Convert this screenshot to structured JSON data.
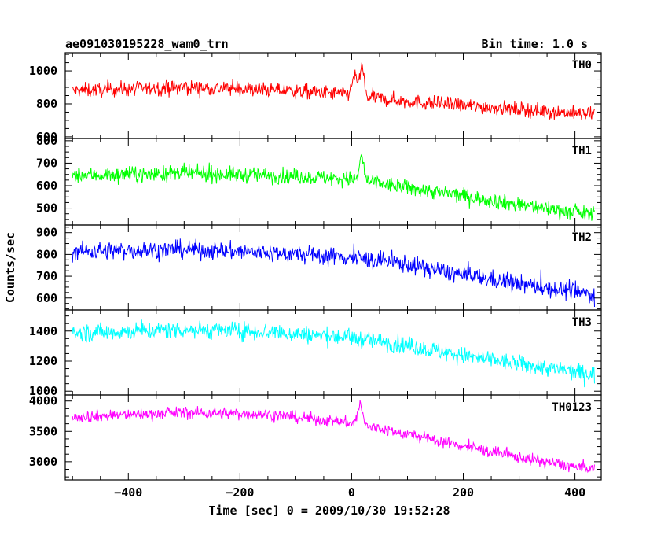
{
  "chart_data": {
    "type": "line",
    "title_left": "ae091030195228_wam0_trn",
    "title_right": "Bin time: 1.0 s",
    "xlabel": "Time [sec] 0 = 2009/10/30 19:52:28",
    "ylabel": "Counts/sec",
    "xlim": [
      -513,
      447
    ],
    "x_ticks": [
      -400,
      -200,
      0,
      200,
      400
    ],
    "x_range": [
      -500,
      435
    ],
    "panels": [
      {
        "name": "TH0",
        "color": "#ff0000",
        "ylim": [
          590,
          1110
        ],
        "y_ticks": [
          600,
          800,
          1000
        ],
        "tick_labels": [
          "600",
          "800",
          "1000"
        ],
        "trend": [
          [
            -500,
            880
          ],
          [
            -300,
            900
          ],
          [
            -150,
            885
          ],
          [
            -10,
            860
          ],
          [
            80,
            820
          ],
          [
            200,
            790
          ],
          [
            435,
            735
          ]
        ],
        "noise": 32,
        "spike_max": 60,
        "burst": [
          {
            "x": 5,
            "width": 6,
            "amp": 120
          },
          {
            "x": 18,
            "width": 5,
            "amp": 180
          }
        ]
      },
      {
        "name": "TH1",
        "color": "#00ff00",
        "ylim": [
          425,
          810
        ],
        "y_ticks": [
          500,
          600,
          700,
          800
        ],
        "tick_labels": [
          "500",
          "600",
          "700",
          "800"
        ],
        "trend": [
          [
            -500,
            645
          ],
          [
            -300,
            655
          ],
          [
            -150,
            645
          ],
          [
            0,
            630
          ],
          [
            100,
            590
          ],
          [
            200,
            555
          ],
          [
            300,
            515
          ],
          [
            435,
            470
          ]
        ],
        "noise": 25,
        "spike_max": 55,
        "burst": [
          {
            "x": 18,
            "width": 5,
            "amp": 110
          }
        ]
      },
      {
        "name": "TH2",
        "color": "#0000ff",
        "ylim": [
          545,
          935
        ],
        "y_ticks": [
          600,
          700,
          800,
          900
        ],
        "tick_labels": [
          "600",
          "700",
          "800",
          "900"
        ],
        "trend": [
          [
            -500,
            815
          ],
          [
            -300,
            822
          ],
          [
            -150,
            808
          ],
          [
            0,
            785
          ],
          [
            100,
            755
          ],
          [
            200,
            705
          ],
          [
            300,
            665
          ],
          [
            435,
            615
          ]
        ],
        "noise": 30,
        "spike_max": 70,
        "burst": []
      },
      {
        "name": "TH3",
        "color": "#00ffff",
        "ylim": [
          975,
          1540
        ],
        "y_ticks": [
          1000,
          1200,
          1400
        ],
        "tick_labels": [
          "1000",
          "1200",
          "1400"
        ],
        "trend": [
          [
            -500,
            1385
          ],
          [
            -300,
            1410
          ],
          [
            -150,
            1395
          ],
          [
            0,
            1355
          ],
          [
            100,
            1305
          ],
          [
            200,
            1235
          ],
          [
            300,
            1180
          ],
          [
            435,
            1110
          ]
        ],
        "noise": 42,
        "spike_max": 90,
        "burst": []
      },
      {
        "name": "TH0123",
        "color": "#ff00ff",
        "ylim": [
          2700,
          4100
        ],
        "y_ticks": [
          3000,
          3500,
          4000
        ],
        "tick_labels": [
          "3000",
          "3500",
          "4000"
        ],
        "trend": [
          [
            -500,
            3740
          ],
          [
            -300,
            3810
          ],
          [
            -150,
            3780
          ],
          [
            -10,
            3650
          ],
          [
            80,
            3490
          ],
          [
            200,
            3260
          ],
          [
            300,
            3070
          ],
          [
            435,
            2860
          ]
        ],
        "noise": 70,
        "spike_max": 140,
        "burst": [
          {
            "x": 15,
            "width": 6,
            "amp": 340
          }
        ]
      }
    ]
  }
}
